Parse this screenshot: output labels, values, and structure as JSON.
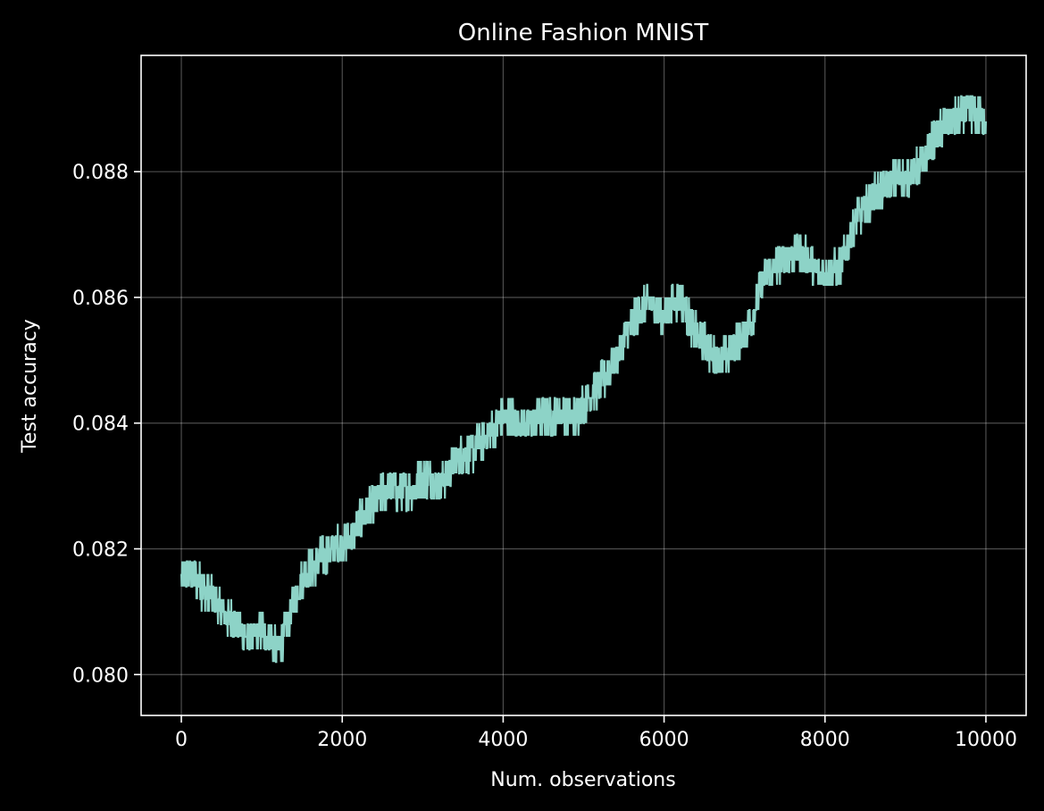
{
  "chart_data": {
    "type": "line",
    "title": "Online Fashion MNIST",
    "xlabel": "Num. observations",
    "ylabel": "Test accuracy",
    "xlim": [
      -500,
      10500
    ],
    "ylim": [
      0.07935,
      0.08985
    ],
    "xticks": [
      0,
      2000,
      4000,
      6000,
      8000,
      10000
    ],
    "xtick_labels": [
      "0",
      "2000",
      "4000",
      "6000",
      "8000",
      "10000"
    ],
    "yticks": [
      0.08,
      0.082,
      0.084,
      0.086,
      0.088
    ],
    "ytick_labels": [
      "0.080",
      "0.082",
      "0.084",
      "0.086",
      "0.088"
    ],
    "grid": true,
    "background": "#000000",
    "foreground": "#ffffff",
    "series": [
      {
        "color": "#8dd3c7",
        "noise_amplitude": 0.0003,
        "x": [
          0,
          100,
          200,
          300,
          400,
          500,
          600,
          700,
          800,
          900,
          1000,
          1100,
          1200,
          1300,
          1400,
          1500,
          1600,
          1700,
          1800,
          1900,
          2000,
          2100,
          2200,
          2300,
          2400,
          2500,
          2600,
          2700,
          2800,
          2900,
          3000,
          3100,
          3200,
          3300,
          3400,
          3500,
          3600,
          3700,
          3800,
          3900,
          4000,
          4100,
          4200,
          4300,
          4400,
          4500,
          4600,
          4700,
          4800,
          4900,
          5000,
          5100,
          5200,
          5300,
          5400,
          5500,
          5600,
          5700,
          5800,
          5900,
          6000,
          6100,
          6200,
          6300,
          6400,
          6500,
          6600,
          6700,
          6800,
          6900,
          7000,
          7100,
          7200,
          7300,
          7400,
          7500,
          7600,
          7700,
          7800,
          7900,
          8000,
          8100,
          8200,
          8300,
          8400,
          8500,
          8600,
          8700,
          8800,
          8900,
          9000,
          9100,
          9200,
          9300,
          9400,
          9500,
          9600,
          9700,
          9800,
          9900,
          10000
        ],
        "y": [
          0.0815,
          0.0816,
          0.0815,
          0.0813,
          0.0812,
          0.081,
          0.0809,
          0.0808,
          0.0806,
          0.0806,
          0.0807,
          0.0806,
          0.0804,
          0.0807,
          0.0812,
          0.0815,
          0.0817,
          0.0818,
          0.0819,
          0.082,
          0.0821,
          0.0822,
          0.0824,
          0.0826,
          0.0827,
          0.0829,
          0.083,
          0.0829,
          0.0829,
          0.083,
          0.0831,
          0.0831,
          0.083,
          0.0832,
          0.0834,
          0.0835,
          0.0835,
          0.0837,
          0.0838,
          0.0839,
          0.0841,
          0.0841,
          0.084,
          0.084,
          0.084,
          0.0841,
          0.0841,
          0.0842,
          0.0841,
          0.0841,
          0.0843,
          0.0845,
          0.0846,
          0.0848,
          0.085,
          0.0853,
          0.0856,
          0.0858,
          0.0859,
          0.0858,
          0.0857,
          0.0859,
          0.086,
          0.0857,
          0.0854,
          0.0853,
          0.0851,
          0.085,
          0.0851,
          0.0853,
          0.0854,
          0.0857,
          0.0862,
          0.0864,
          0.0865,
          0.0866,
          0.0867,
          0.0867,
          0.0866,
          0.0864,
          0.0864,
          0.0864,
          0.0865,
          0.0869,
          0.0873,
          0.0874,
          0.0876,
          0.0877,
          0.0878,
          0.0879,
          0.0879,
          0.088,
          0.0881,
          0.0884,
          0.0886,
          0.0888,
          0.0888,
          0.0889,
          0.089,
          0.0889,
          0.0888
        ]
      }
    ]
  }
}
